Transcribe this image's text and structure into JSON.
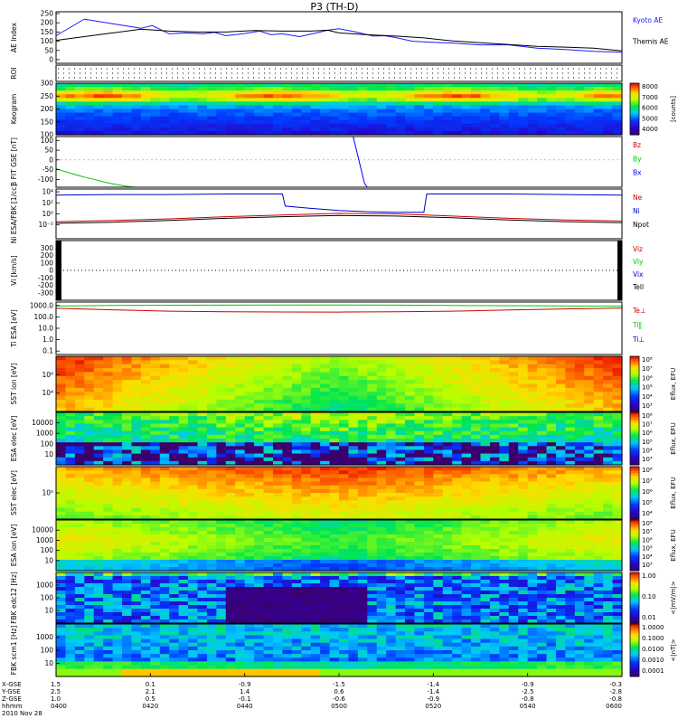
{
  "title": "P3 (TH-D)",
  "colors": {
    "ae_kyoto": "#1a1aff",
    "ae_themis": "#000000",
    "bx": "#0000ff",
    "by": "#00c800",
    "bz": "#cc0000",
    "ne": "#cc0000",
    "ni": "#0000cc",
    "npot": "#000000"
  },
  "chart_data": [
    {
      "type": "line",
      "id": "ae",
      "ylabel": "AE Index",
      "ylim": [
        -20,
        260
      ],
      "yticks": [
        "250",
        "200",
        "150",
        "100",
        "50",
        "0"
      ],
      "tick_values": [
        250,
        200,
        150,
        100,
        50,
        0
      ],
      "series": [
        {
          "name": "Kyoto AE",
          "color": "#1a1aff",
          "x": [
            0,
            5,
            8,
            10,
            13,
            15,
            17,
            20,
            23,
            26,
            28,
            30,
            33,
            36,
            38,
            40,
            43,
            46,
            48,
            50,
            53,
            56,
            58,
            60,
            63,
            66,
            70,
            75,
            80,
            85,
            90,
            95,
            100
          ],
          "y": [
            130,
            220,
            205,
            195,
            180,
            170,
            185,
            140,
            145,
            140,
            148,
            130,
            140,
            155,
            135,
            140,
            125,
            145,
            160,
            168,
            150,
            128,
            130,
            120,
            100,
            95,
            90,
            80,
            80,
            62,
            55,
            45,
            40
          ]
        },
        {
          "name": "Themis AE",
          "color": "#000000",
          "x": [
            0,
            5,
            10,
            15,
            20,
            25,
            30,
            35,
            40,
            45,
            48,
            50,
            55,
            60,
            65,
            70,
            75,
            80,
            85,
            90,
            95,
            100
          ],
          "y": [
            105,
            125,
            145,
            165,
            155,
            150,
            150,
            158,
            155,
            155,
            160,
            145,
            135,
            128,
            118,
            102,
            92,
            82,
            72,
            68,
            62,
            48
          ]
        }
      ]
    },
    {
      "type": "table",
      "id": "roi",
      "ylabel": "ROI"
    },
    {
      "type": "heatmap",
      "id": "keogram",
      "ylabel": "Keogram",
      "ylim": [
        100,
        300
      ],
      "yticks": [
        "300",
        "250",
        "200",
        "150",
        "100"
      ],
      "tick_values": [
        300,
        250,
        200,
        150,
        100
      ],
      "colorbar": {
        "ticks": [
          "8000",
          "7000",
          "6000",
          "5000",
          "4000"
        ],
        "label": "[counts]"
      }
    },
    {
      "type": "line",
      "id": "bfield",
      "ylabel": "B FIT GSE [nT]",
      "ylim": [
        -140,
        120
      ],
      "yticks": [
        "100",
        "50",
        "0",
        "-50",
        "-100"
      ],
      "tick_values": [
        100,
        50,
        0,
        -50,
        -100
      ],
      "series": [
        {
          "name": "Bz",
          "color": "#cc0000",
          "x": [],
          "y": []
        },
        {
          "name": "By",
          "color": "#00c800",
          "x": [
            0,
            1,
            2,
            3,
            4,
            5,
            6,
            7,
            8,
            9,
            10,
            11,
            12,
            13,
            14,
            15
          ],
          "y": [
            -45,
            -55,
            -63,
            -72,
            -80,
            -88,
            -95,
            -102,
            -110,
            -117,
            -123,
            -128,
            -133,
            -137,
            -140,
            -143
          ]
        },
        {
          "name": "Bx",
          "color": "#0000ff",
          "x": [
            52.5,
            53.5,
            54.5,
            55
          ],
          "y": [
            120,
            0,
            -120,
            -140
          ]
        }
      ]
    },
    {
      "type": "line",
      "id": "density",
      "ylabel": "Ni ESA/FBK [1/cc]",
      "ylim": [
        -4.5,
        4.5
      ],
      "yticks": [
        "10⁴",
        "10²",
        "10⁰",
        "10⁻²"
      ],
      "tick_values": [
        4,
        2,
        0,
        -2
      ],
      "series": [
        {
          "name": "Ne",
          "color": "#cc0000",
          "x": [
            0,
            10,
            20,
            30,
            40,
            50,
            60,
            70,
            80,
            90,
            100
          ],
          "y": [
            -1.4,
            -1.2,
            -0.9,
            -0.5,
            -0.2,
            0.1,
            0,
            -0.4,
            -0.8,
            -1.1,
            -1.3
          ]
        },
        {
          "name": "Ni",
          "color": "#0000cc",
          "x": [
            0,
            10,
            20,
            30,
            35,
            40,
            40.5,
            45,
            50,
            55,
            60,
            65,
            65.5,
            70,
            80,
            90,
            100
          ],
          "y": [
            3.4,
            3.5,
            3.5,
            3.6,
            3.6,
            3.6,
            1.4,
            1.0,
            0.6,
            0.4,
            0.3,
            0.3,
            3.6,
            3.6,
            3.6,
            3.5,
            3.4
          ]
        },
        {
          "name": "Npot",
          "color": "#000000",
          "x": [
            0,
            10,
            20,
            30,
            40,
            50,
            60,
            70,
            80,
            90,
            100
          ],
          "y": [
            -1.7,
            -1.5,
            -1.2,
            -0.8,
            -0.5,
            -0.3,
            -0.4,
            -0.7,
            -1.1,
            -1.4,
            -1.6
          ]
        }
      ]
    },
    {
      "type": "line",
      "id": "velocity",
      "ylabel": "Vi [km/s]",
      "ylim": [
        -400,
        400
      ],
      "yticks": [
        "300",
        "200",
        "100",
        "0",
        "-100",
        "-200",
        "-300"
      ],
      "tick_values": [
        300,
        200,
        100,
        0,
        -100,
        -200,
        -300
      ],
      "series": [
        {
          "name": "Viz",
          "color": "#cc0000",
          "x": [],
          "y": []
        },
        {
          "name": "Viy",
          "color": "#00c800",
          "x": [],
          "y": []
        },
        {
          "name": "Vix",
          "color": "#0000cc",
          "x": [],
          "y": []
        },
        {
          "name": "Tell",
          "color": "#000000",
          "x": [],
          "y": []
        }
      ]
    },
    {
      "type": "line",
      "id": "temperature",
      "ylabel": "Ti ESA [eV]",
      "ylim": [
        -1.3,
        3.3
      ],
      "yticks": [
        "1000.0",
        "100.0",
        "10.0",
        "1.0",
        "0.1"
      ],
      "tick_values": [
        3,
        2,
        1,
        0,
        -1
      ],
      "series": [
        {
          "name": "Te⊥",
          "color": "#cc0000",
          "x": [
            0,
            10,
            20,
            30,
            40,
            50,
            60,
            70,
            80,
            90,
            100
          ],
          "y": [
            2.75,
            2.62,
            2.5,
            2.45,
            2.43,
            2.42,
            2.45,
            2.5,
            2.6,
            2.7,
            2.78
          ]
        },
        {
          "name": "Ti‖",
          "color": "#00c800",
          "x": [
            0,
            10,
            20,
            30,
            40,
            50,
            60,
            70,
            80,
            90,
            100
          ],
          "y": [
            2.95,
            3.0,
            3.02,
            3.03,
            3.04,
            3.05,
            3.03,
            3.0,
            2.98,
            2.96,
            2.95
          ]
        },
        {
          "name": "Ti⊥",
          "color": "#0000cc",
          "x": [],
          "y": []
        }
      ]
    },
    {
      "type": "heatmap",
      "id": "sst_ion",
      "ylabel": "SST ion [eV]",
      "yticks": [
        "10⁶",
        "10⁴"
      ],
      "colorbar": {
        "ticks": [
          "10⁸",
          "10⁷",
          "10⁶",
          "10⁵",
          "10⁴",
          "10³"
        ],
        "label": "Eflux, EFU"
      }
    },
    {
      "type": "heatmap",
      "id": "esa_elec",
      "ylabel": "ESA elec [eV]",
      "yticks": [
        "10000",
        "1000",
        "100",
        "10"
      ],
      "colorbar": {
        "ticks": [
          "10⁸",
          "10⁷",
          "10⁶",
          "10⁵",
          "10⁴",
          "10³"
        ],
        "label": "Eflux, EFU"
      }
    },
    {
      "type": "heatmap",
      "id": "sst_elec",
      "ylabel": "SST elec [eV]",
      "yticks": [
        "10⁵"
      ],
      "colorbar": {
        "ticks": [
          "10⁸",
          "10⁷",
          "10⁶",
          "10⁵",
          "10⁴"
        ],
        "label": "Eflux, EFU"
      }
    },
    {
      "type": "heatmap",
      "id": "esa_ion",
      "ylabel": "ESA ion [eV]",
      "yticks": [
        "10000",
        "1000",
        "100",
        "10"
      ],
      "colorbar": {
        "ticks": [
          "10⁸",
          "10⁷",
          "10⁶",
          "10⁵",
          "10⁴",
          "10³"
        ],
        "label": "Eflux, EFU"
      }
    },
    {
      "type": "heatmap",
      "id": "fbk_edc12",
      "ylabel": "FBK edc12 [Hz]",
      "yticks": [
        "1000",
        "100",
        "10"
      ],
      "colorbar": {
        "ticks": [
          "1.00",
          "0.10",
          "0.01"
        ],
        "label": "<|mV/m|>"
      }
    },
    {
      "type": "heatmap",
      "id": "fbk_scm1",
      "ylabel": "FBK scm1 [Hz]",
      "yticks": [
        "1000",
        "100",
        "10"
      ],
      "colorbar": {
        "ticks": [
          "1.0000",
          "0.1000",
          "0.0100",
          "0.0010",
          "0.0001"
        ],
        "label": "<|nT|>"
      }
    }
  ],
  "xaxis": {
    "rows": [
      {
        "label": "X-GSE",
        "values": [
          "1.5",
          "0.1",
          "-0.9",
          "-1.5",
          "-1.4",
          "-0.9",
          "-0.3"
        ]
      },
      {
        "label": "Y-GSE",
        "values": [
          "2.5",
          "2.1",
          "1.4",
          "0.6",
          "-1.4",
          "-2.5",
          "-2.8"
        ]
      },
      {
        "label": "Z-GSE",
        "values": [
          "1.0",
          "0.5",
          "-0.1",
          "-0.6",
          "-0.9",
          "-0.8",
          "-0.8"
        ]
      },
      {
        "label": "hhmm",
        "values": [
          "0400",
          "0420",
          "0440",
          "0500",
          "0520",
          "0540",
          "0600"
        ]
      }
    ],
    "date": "2010 Nov 28"
  }
}
